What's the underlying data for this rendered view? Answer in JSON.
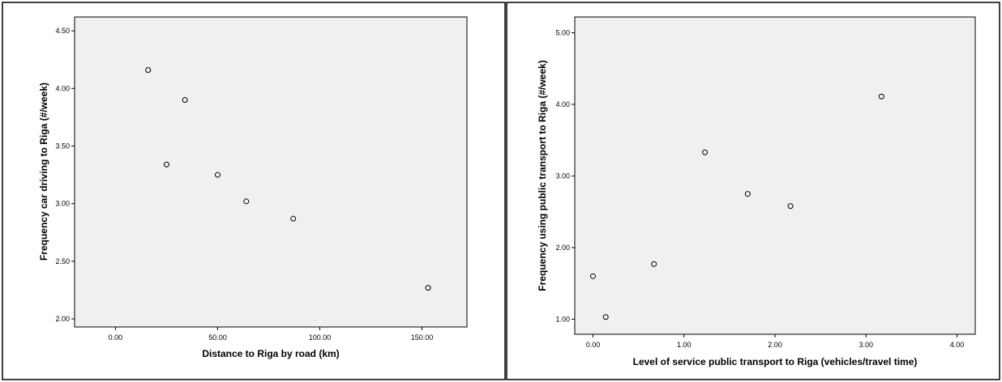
{
  "chart_data": [
    {
      "type": "scatter",
      "xlabel": "Distance to Riga by road (km)",
      "ylabel": "Frequency car driving to Riga (#/week)",
      "xlim": [
        -20,
        172
      ],
      "ylim": [
        1.93,
        4.62
      ],
      "xticks": [
        "0.00",
        "50.00",
        "100.00",
        "150.00"
      ],
      "xtick_values": [
        0,
        50,
        100,
        150
      ],
      "yticks": [
        "2.00",
        "2.50",
        "3.00",
        "3.50",
        "4.00",
        "4.50"
      ],
      "ytick_values": [
        2.0,
        2.5,
        3.0,
        3.5,
        4.0,
        4.5
      ],
      "grid": false,
      "points": [
        {
          "x": 16,
          "y": 4.16
        },
        {
          "x": 34,
          "y": 3.9
        },
        {
          "x": 25,
          "y": 3.34
        },
        {
          "x": 50,
          "y": 3.25
        },
        {
          "x": 64,
          "y": 3.02
        },
        {
          "x": 87,
          "y": 2.87
        },
        {
          "x": 153,
          "y": 2.27
        }
      ]
    },
    {
      "type": "scatter",
      "xlabel": "Level of service public transport to Riga (vehicles/travel time)",
      "ylabel": "Frequency using public transport to Riga (#/week)",
      "xlim": [
        -0.2,
        4.2
      ],
      "ylim": [
        0.79,
        5.22
      ],
      "xticks": [
        "0.00",
        "1.00",
        "2.00",
        "3.00",
        "4.00"
      ],
      "xtick_values": [
        0,
        1,
        2,
        3,
        4
      ],
      "yticks": [
        "1.00",
        "2.00",
        "3.00",
        "4.00",
        "5.00"
      ],
      "ytick_values": [
        1,
        2,
        3,
        4,
        5
      ],
      "grid": false,
      "points": [
        {
          "x": 0.0,
          "y": 1.6
        },
        {
          "x": 0.14,
          "y": 1.03
        },
        {
          "x": 0.67,
          "y": 1.77
        },
        {
          "x": 1.23,
          "y": 3.33
        },
        {
          "x": 1.7,
          "y": 2.75
        },
        {
          "x": 2.17,
          "y": 2.58
        },
        {
          "x": 3.17,
          "y": 4.11
        }
      ]
    }
  ]
}
